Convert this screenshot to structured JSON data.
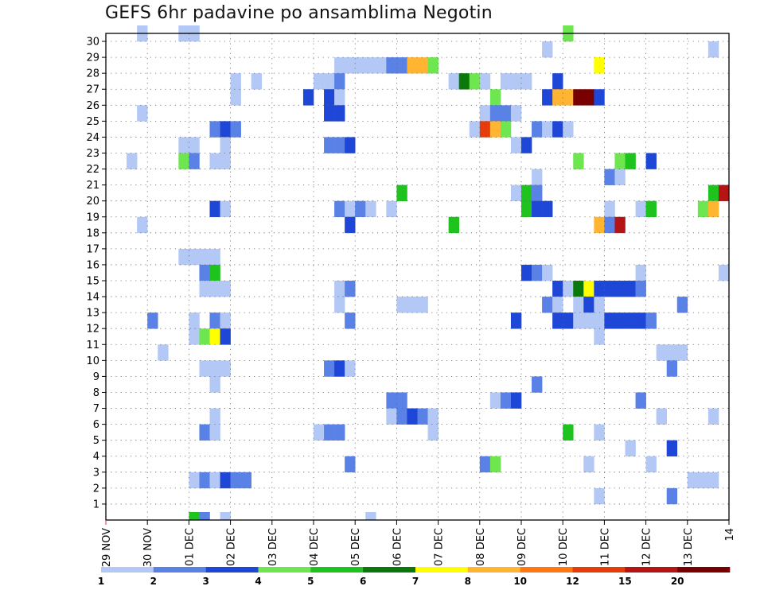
{
  "chart_data": {
    "type": "heatmap",
    "title": "GEFS 6hr padavine po ansamblima Negotin",
    "xlabel": "",
    "ylabel": "",
    "x_tick_labels": [
      "29 NOV",
      "30 NOV",
      "01 DEC",
      "02 DEC",
      "03 DEC",
      "04 DEC",
      "05 DEC",
      "06 DEC",
      "07 DEC",
      "08 DEC",
      "09 DEC",
      "10 DEC",
      "11 DEC",
      "12 DEC",
      "13 DEC",
      "14"
    ],
    "y_tick_labels": [
      "1",
      "2",
      "3",
      "4",
      "5",
      "6",
      "7",
      "8",
      "9",
      "10",
      "11",
      "12",
      "13",
      "14",
      "15",
      "16",
      "17",
      "18",
      "19",
      "20",
      "21",
      "22",
      "23",
      "24",
      "25",
      "26",
      "27",
      "28",
      "29",
      "30"
    ],
    "steps_per_day": 4,
    "num_steps": 60,
    "num_members": 30,
    "ylim": [
      0,
      30
    ],
    "grid": "dotted",
    "colorbar": {
      "placement": "bottom",
      "labels": [
        "1",
        "2",
        "3",
        "4",
        "5",
        "6",
        "7",
        "8",
        "10",
        "12",
        "15",
        "20"
      ],
      "colors": [
        "#b4c8f5",
        "#5a82e6",
        "#1e46d7",
        "#6ee650",
        "#1ec31e",
        "#0a780a",
        "#ffff00",
        "#ffb432",
        "#ff7814",
        "#e63c0a",
        "#b41414",
        "#780000"
      ]
    },
    "cells": [
      {
        "member": 30,
        "step": 4,
        "level": 1
      },
      {
        "member": 30,
        "step": 8,
        "level": 1
      },
      {
        "member": 30,
        "step": 9,
        "level": 1
      },
      {
        "member": 30,
        "step": 45,
        "level": 4
      },
      {
        "member": 29,
        "step": 43,
        "level": 1
      },
      {
        "member": 29,
        "step": 59,
        "level": 1
      },
      {
        "member": 28,
        "step": 23,
        "level": 1
      },
      {
        "member": 28,
        "step": 24,
        "level": 1
      },
      {
        "member": 28,
        "step": 25,
        "level": 1
      },
      {
        "member": 28,
        "step": 26,
        "level": 1
      },
      {
        "member": 28,
        "step": 27,
        "level": 1
      },
      {
        "member": 28,
        "step": 28,
        "level": 2
      },
      {
        "member": 28,
        "step": 29,
        "level": 2
      },
      {
        "member": 28,
        "step": 30,
        "level": 8
      },
      {
        "member": 28,
        "step": 31,
        "level": 8
      },
      {
        "member": 28,
        "step": 32,
        "level": 4
      },
      {
        "member": 28,
        "step": 48,
        "level": 7
      },
      {
        "member": 27,
        "step": 13,
        "level": 1
      },
      {
        "member": 27,
        "step": 15,
        "level": 1
      },
      {
        "member": 27,
        "step": 21,
        "level": 1
      },
      {
        "member": 27,
        "step": 22,
        "level": 1
      },
      {
        "member": 27,
        "step": 23,
        "level": 2
      },
      {
        "member": 27,
        "step": 34,
        "level": 1
      },
      {
        "member": 27,
        "step": 35,
        "level": 6
      },
      {
        "member": 27,
        "step": 36,
        "level": 4
      },
      {
        "member": 27,
        "step": 37,
        "level": 1
      },
      {
        "member": 27,
        "step": 39,
        "level": 1
      },
      {
        "member": 27,
        "step": 40,
        "level": 1
      },
      {
        "member": 27,
        "step": 41,
        "level": 1
      },
      {
        "member": 27,
        "step": 44,
        "level": 3
      },
      {
        "member": 26,
        "step": 13,
        "level": 1
      },
      {
        "member": 26,
        "step": 20,
        "level": 3
      },
      {
        "member": 26,
        "step": 22,
        "level": 3
      },
      {
        "member": 26,
        "step": 23,
        "level": 1
      },
      {
        "member": 26,
        "step": 38,
        "level": 4
      },
      {
        "member": 26,
        "step": 43,
        "level": 3
      },
      {
        "member": 26,
        "step": 44,
        "level": 8
      },
      {
        "member": 26,
        "step": 45,
        "level": 8
      },
      {
        "member": 26,
        "step": 46,
        "level": 12
      },
      {
        "member": 26,
        "step": 47,
        "level": 12
      },
      {
        "member": 26,
        "step": 48,
        "level": 3
      },
      {
        "member": 25,
        "step": 4,
        "level": 1
      },
      {
        "member": 25,
        "step": 22,
        "level": 3
      },
      {
        "member": 25,
        "step": 23,
        "level": 3
      },
      {
        "member": 25,
        "step": 37,
        "level": 1
      },
      {
        "member": 25,
        "step": 38,
        "level": 2
      },
      {
        "member": 25,
        "step": 39,
        "level": 2
      },
      {
        "member": 25,
        "step": 40,
        "level": 1
      },
      {
        "member": 24,
        "step": 11,
        "level": 2
      },
      {
        "member": 24,
        "step": 12,
        "level": 3
      },
      {
        "member": 24,
        "step": 13,
        "level": 2
      },
      {
        "member": 24,
        "step": 36,
        "level": 1
      },
      {
        "member": 24,
        "step": 37,
        "level": 10
      },
      {
        "member": 24,
        "step": 38,
        "level": 8
      },
      {
        "member": 24,
        "step": 39,
        "level": 4
      },
      {
        "member": 24,
        "step": 42,
        "level": 2
      },
      {
        "member": 24,
        "step": 43,
        "level": 1
      },
      {
        "member": 24,
        "step": 44,
        "level": 3
      },
      {
        "member": 24,
        "step": 45,
        "level": 1
      },
      {
        "member": 23,
        "step": 8,
        "level": 1
      },
      {
        "member": 23,
        "step": 9,
        "level": 1
      },
      {
        "member": 23,
        "step": 12,
        "level": 1
      },
      {
        "member": 23,
        "step": 22,
        "level": 2
      },
      {
        "member": 23,
        "step": 23,
        "level": 2
      },
      {
        "member": 23,
        "step": 24,
        "level": 3
      },
      {
        "member": 23,
        "step": 40,
        "level": 1
      },
      {
        "member": 23,
        "step": 41,
        "level": 3
      },
      {
        "member": 22,
        "step": 3,
        "level": 1
      },
      {
        "member": 22,
        "step": 8,
        "level": 4
      },
      {
        "member": 22,
        "step": 9,
        "level": 2
      },
      {
        "member": 22,
        "step": 11,
        "level": 1
      },
      {
        "member": 22,
        "step": 12,
        "level": 1
      },
      {
        "member": 22,
        "step": 46,
        "level": 4
      },
      {
        "member": 22,
        "step": 50,
        "level": 4
      },
      {
        "member": 22,
        "step": 51,
        "level": 5
      },
      {
        "member": 22,
        "step": 53,
        "level": 3
      },
      {
        "member": 21,
        "step": 42,
        "level": 1
      },
      {
        "member": 21,
        "step": 49,
        "level": 2
      },
      {
        "member": 21,
        "step": 50,
        "level": 1
      },
      {
        "member": 20,
        "step": 29,
        "level": 5
      },
      {
        "member": 20,
        "step": 40,
        "level": 1
      },
      {
        "member": 20,
        "step": 41,
        "level": 5
      },
      {
        "member": 20,
        "step": 42,
        "level": 2
      },
      {
        "member": 20,
        "step": 59,
        "level": 5
      },
      {
        "member": 20,
        "step": 60,
        "level": 11
      },
      {
        "member": 19,
        "step": 11,
        "level": 3
      },
      {
        "member": 19,
        "step": 12,
        "level": 1
      },
      {
        "member": 19,
        "step": 23,
        "level": 2
      },
      {
        "member": 19,
        "step": 24,
        "level": 1
      },
      {
        "member": 19,
        "step": 25,
        "level": 2
      },
      {
        "member": 19,
        "step": 26,
        "level": 1
      },
      {
        "member": 19,
        "step": 28,
        "level": 1
      },
      {
        "member": 19,
        "step": 41,
        "level": 5
      },
      {
        "member": 19,
        "step": 42,
        "level": 3
      },
      {
        "member": 19,
        "step": 43,
        "level": 3
      },
      {
        "member": 19,
        "step": 49,
        "level": 1
      },
      {
        "member": 19,
        "step": 52,
        "level": 1
      },
      {
        "member": 19,
        "step": 53,
        "level": 5
      },
      {
        "member": 19,
        "step": 58,
        "level": 4
      },
      {
        "member": 19,
        "step": 59,
        "level": 8
      },
      {
        "member": 18,
        "step": 4,
        "level": 1
      },
      {
        "member": 18,
        "step": 24,
        "level": 3
      },
      {
        "member": 18,
        "step": 34,
        "level": 5
      },
      {
        "member": 18,
        "step": 48,
        "level": 8
      },
      {
        "member": 18,
        "step": 49,
        "level": 2
      },
      {
        "member": 18,
        "step": 50,
        "level": 11
      },
      {
        "member": 16,
        "step": 8,
        "level": 1
      },
      {
        "member": 16,
        "step": 9,
        "level": 1
      },
      {
        "member": 16,
        "step": 10,
        "level": 1
      },
      {
        "member": 16,
        "step": 11,
        "level": 1
      },
      {
        "member": 15,
        "step": 10,
        "level": 2
      },
      {
        "member": 15,
        "step": 11,
        "level": 5
      },
      {
        "member": 15,
        "step": 41,
        "level": 3
      },
      {
        "member": 15,
        "step": 42,
        "level": 2
      },
      {
        "member": 15,
        "step": 43,
        "level": 1
      },
      {
        "member": 15,
        "step": 52,
        "level": 1
      },
      {
        "member": 15,
        "step": 60,
        "level": 1
      },
      {
        "member": 14,
        "step": 10,
        "level": 1
      },
      {
        "member": 14,
        "step": 11,
        "level": 1
      },
      {
        "member": 14,
        "step": 12,
        "level": 1
      },
      {
        "member": 14,
        "step": 23,
        "level": 1
      },
      {
        "member": 14,
        "step": 24,
        "level": 2
      },
      {
        "member": 14,
        "step": 44,
        "level": 3
      },
      {
        "member": 14,
        "step": 45,
        "level": 1
      },
      {
        "member": 14,
        "step": 46,
        "level": 6
      },
      {
        "member": 14,
        "step": 47,
        "level": 7
      },
      {
        "member": 14,
        "step": 48,
        "level": 3
      },
      {
        "member": 14,
        "step": 49,
        "level": 3
      },
      {
        "member": 14,
        "step": 50,
        "level": 3
      },
      {
        "member": 14,
        "step": 51,
        "level": 3
      },
      {
        "member": 14,
        "step": 52,
        "level": 2
      },
      {
        "member": 13,
        "step": 23,
        "level": 1
      },
      {
        "member": 13,
        "step": 29,
        "level": 1
      },
      {
        "member": 13,
        "step": 30,
        "level": 1
      },
      {
        "member": 13,
        "step": 31,
        "level": 1
      },
      {
        "member": 13,
        "step": 43,
        "level": 2
      },
      {
        "member": 13,
        "step": 44,
        "level": 1
      },
      {
        "member": 13,
        "step": 46,
        "level": 1
      },
      {
        "member": 13,
        "step": 47,
        "level": 3
      },
      {
        "member": 13,
        "step": 48,
        "level": 1
      },
      {
        "member": 13,
        "step": 56,
        "level": 2
      },
      {
        "member": 12,
        "step": 5,
        "level": 2
      },
      {
        "member": 12,
        "step": 9,
        "level": 1
      },
      {
        "member": 12,
        "step": 11,
        "level": 2
      },
      {
        "member": 12,
        "step": 12,
        "level": 1
      },
      {
        "member": 12,
        "step": 24,
        "level": 2
      },
      {
        "member": 12,
        "step": 40,
        "level": 3
      },
      {
        "member": 12,
        "step": 44,
        "level": 3
      },
      {
        "member": 12,
        "step": 45,
        "level": 3
      },
      {
        "member": 12,
        "step": 46,
        "level": 1
      },
      {
        "member": 12,
        "step": 47,
        "level": 1
      },
      {
        "member": 12,
        "step": 48,
        "level": 1
      },
      {
        "member": 12,
        "step": 49,
        "level": 3
      },
      {
        "member": 12,
        "step": 50,
        "level": 3
      },
      {
        "member": 12,
        "step": 51,
        "level": 3
      },
      {
        "member": 12,
        "step": 52,
        "level": 3
      },
      {
        "member": 12,
        "step": 53,
        "level": 2
      },
      {
        "member": 11,
        "step": 9,
        "level": 1
      },
      {
        "member": 11,
        "step": 10,
        "level": 4
      },
      {
        "member": 11,
        "step": 11,
        "level": 7
      },
      {
        "member": 11,
        "step": 12,
        "level": 3
      },
      {
        "member": 11,
        "step": 48,
        "level": 1
      },
      {
        "member": 10,
        "step": 6,
        "level": 1
      },
      {
        "member": 10,
        "step": 54,
        "level": 1
      },
      {
        "member": 10,
        "step": 55,
        "level": 1
      },
      {
        "member": 10,
        "step": 56,
        "level": 1
      },
      {
        "member": 9,
        "step": 10,
        "level": 1
      },
      {
        "member": 9,
        "step": 11,
        "level": 1
      },
      {
        "member": 9,
        "step": 12,
        "level": 1
      },
      {
        "member": 9,
        "step": 22,
        "level": 2
      },
      {
        "member": 9,
        "step": 23,
        "level": 3
      },
      {
        "member": 9,
        "step": 24,
        "level": 1
      },
      {
        "member": 9,
        "step": 55,
        "level": 2
      },
      {
        "member": 8,
        "step": 11,
        "level": 1
      },
      {
        "member": 8,
        "step": 42,
        "level": 2
      },
      {
        "member": 7,
        "step": 28,
        "level": 2
      },
      {
        "member": 7,
        "step": 29,
        "level": 2
      },
      {
        "member": 7,
        "step": 38,
        "level": 1
      },
      {
        "member": 7,
        "step": 39,
        "level": 2
      },
      {
        "member": 7,
        "step": 40,
        "level": 3
      },
      {
        "member": 7,
        "step": 52,
        "level": 2
      },
      {
        "member": 6,
        "step": 11,
        "level": 1
      },
      {
        "member": 6,
        "step": 28,
        "level": 1
      },
      {
        "member": 6,
        "step": 29,
        "level": 2
      },
      {
        "member": 6,
        "step": 30,
        "level": 3
      },
      {
        "member": 6,
        "step": 31,
        "level": 2
      },
      {
        "member": 6,
        "step": 32,
        "level": 1
      },
      {
        "member": 6,
        "step": 54,
        "level": 1
      },
      {
        "member": 6,
        "step": 59,
        "level": 1
      },
      {
        "member": 5,
        "step": 10,
        "level": 2
      },
      {
        "member": 5,
        "step": 11,
        "level": 1
      },
      {
        "member": 5,
        "step": 21,
        "level": 1
      },
      {
        "member": 5,
        "step": 22,
        "level": 2
      },
      {
        "member": 5,
        "step": 23,
        "level": 2
      },
      {
        "member": 5,
        "step": 32,
        "level": 1
      },
      {
        "member": 5,
        "step": 45,
        "level": 5
      },
      {
        "member": 5,
        "step": 48,
        "level": 1
      },
      {
        "member": 4,
        "step": 51,
        "level": 1
      },
      {
        "member": 4,
        "step": 55,
        "level": 3
      },
      {
        "member": 3,
        "step": 24,
        "level": 2
      },
      {
        "member": 3,
        "step": 37,
        "level": 2
      },
      {
        "member": 3,
        "step": 38,
        "level": 4
      },
      {
        "member": 3,
        "step": 47,
        "level": 1
      },
      {
        "member": 3,
        "step": 53,
        "level": 1
      },
      {
        "member": 2,
        "step": 9,
        "level": 1
      },
      {
        "member": 2,
        "step": 10,
        "level": 2
      },
      {
        "member": 2,
        "step": 11,
        "level": 1
      },
      {
        "member": 2,
        "step": 12,
        "level": 3
      },
      {
        "member": 2,
        "step": 13,
        "level": 2
      },
      {
        "member": 2,
        "step": 14,
        "level": 2
      },
      {
        "member": 2,
        "step": 57,
        "level": 1
      },
      {
        "member": 2,
        "step": 58,
        "level": 1
      },
      {
        "member": 2,
        "step": 59,
        "level": 1
      },
      {
        "member": 1,
        "step": 48,
        "level": 1
      },
      {
        "member": 1,
        "step": 55,
        "level": 2
      },
      {
        "member": 0,
        "step": 9,
        "level": 5
      },
      {
        "member": 0,
        "step": 10,
        "level": 2
      },
      {
        "member": 0,
        "step": 12,
        "level": 1
      },
      {
        "member": 0,
        "step": 26,
        "level": 1
      }
    ]
  }
}
